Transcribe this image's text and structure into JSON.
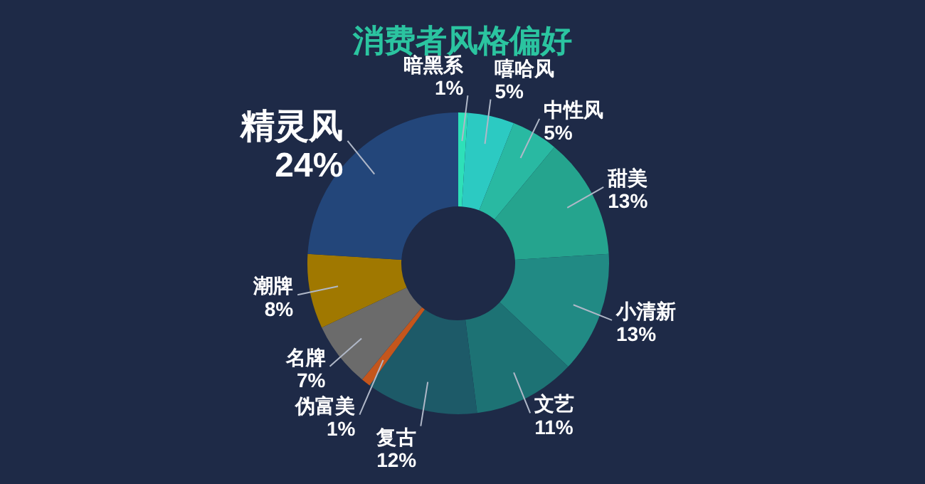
{
  "chart_data": {
    "type": "donut",
    "title": "消费者风格偏好",
    "categories": [
      "暗黑系",
      "嘻哈风",
      "中性风",
      "甜美",
      "小清新",
      "文艺",
      "复古",
      "伪富美",
      "名牌",
      "潮牌",
      "精灵风"
    ],
    "values": [
      1,
      5,
      5,
      13,
      13,
      11,
      12,
      1,
      7,
      8,
      24
    ],
    "value_labels": [
      "1%",
      "5%",
      "5%",
      "13%",
      "13%",
      "11%",
      "12%",
      "1%",
      "7%",
      "8%",
      "24%"
    ],
    "colors": [
      "#2ee0b8",
      "#2ccac2",
      "#29b9a2",
      "#25a48e",
      "#218a84",
      "#1d7274",
      "#1d5a68",
      "#c4561c",
      "#6b6b6b",
      "#a07800",
      "#23467a"
    ]
  }
}
